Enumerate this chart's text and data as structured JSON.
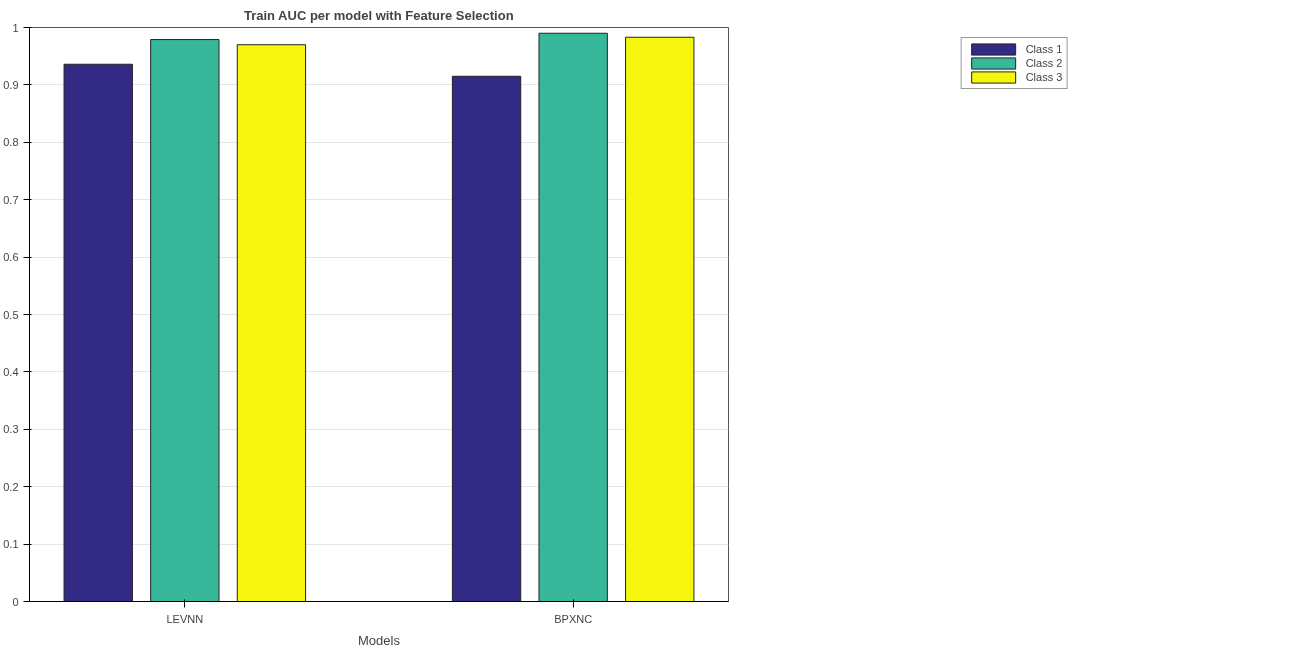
{
  "chart_data": {
    "type": "bar",
    "title": "Train AUC per model with Feature Selection",
    "xlabel": "Models",
    "categories": [
      "LEVNN",
      "BPXNC"
    ],
    "series": [
      {
        "name": "Class 1",
        "color": "#332a85",
        "values": [
          0.936,
          0.915
        ]
      },
      {
        "name": "Class 2",
        "color": "#38b89a",
        "values": [
          0.979,
          0.99
        ]
      },
      {
        "name": "Class 3",
        "color": "#f5f50e",
        "values": [
          0.97,
          0.983
        ]
      }
    ],
    "ylim": [
      0,
      1
    ],
    "yticks": [
      0,
      0.1,
      0.2,
      0.3,
      0.4,
      0.5,
      0.6,
      0.7,
      0.8,
      0.9,
      1
    ],
    "grid": "y",
    "legend": "top right"
  }
}
